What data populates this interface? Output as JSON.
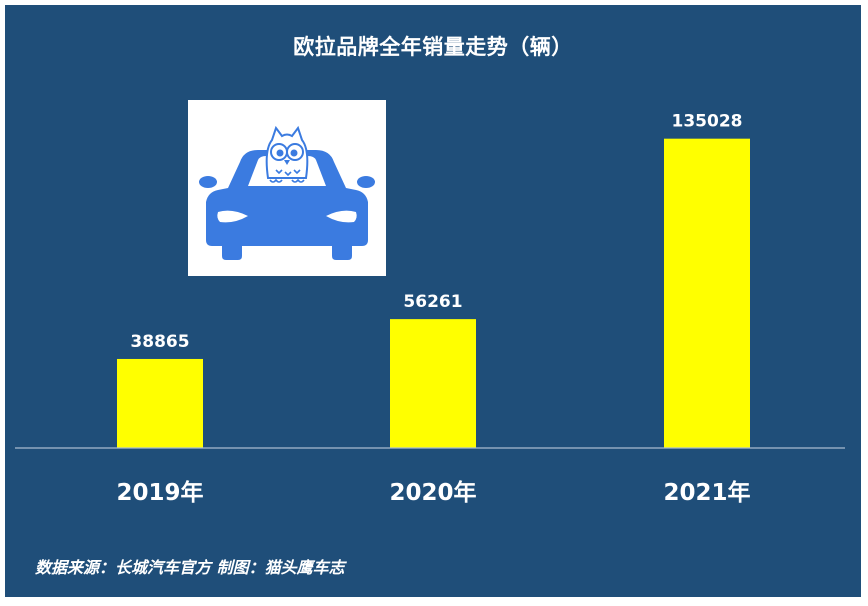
{
  "chart_data": {
    "type": "bar",
    "title": "欧拉品牌全年销量走势（辆）",
    "categories": [
      "2019年",
      "2020年",
      "2021年"
    ],
    "values": [
      38865,
      56261,
      135028
    ],
    "data_labels": [
      "38865",
      "56261",
      "135028"
    ],
    "xlabel": "",
    "ylabel": "",
    "ylim": [
      0,
      141000
    ],
    "grid": false,
    "legend": "none",
    "colors": {
      "background": "#1f4e79",
      "bar": "#ffff00",
      "axis": "#a9bcd0",
      "text": "#ffffff"
    }
  },
  "logo": {
    "icon": "owl-in-car-icon",
    "colors": {
      "car": "#3b7be0",
      "panel": "#ffffff"
    }
  },
  "footer": {
    "note": "数据来源：长城汽车官方  制图：猫头鹰车志"
  }
}
